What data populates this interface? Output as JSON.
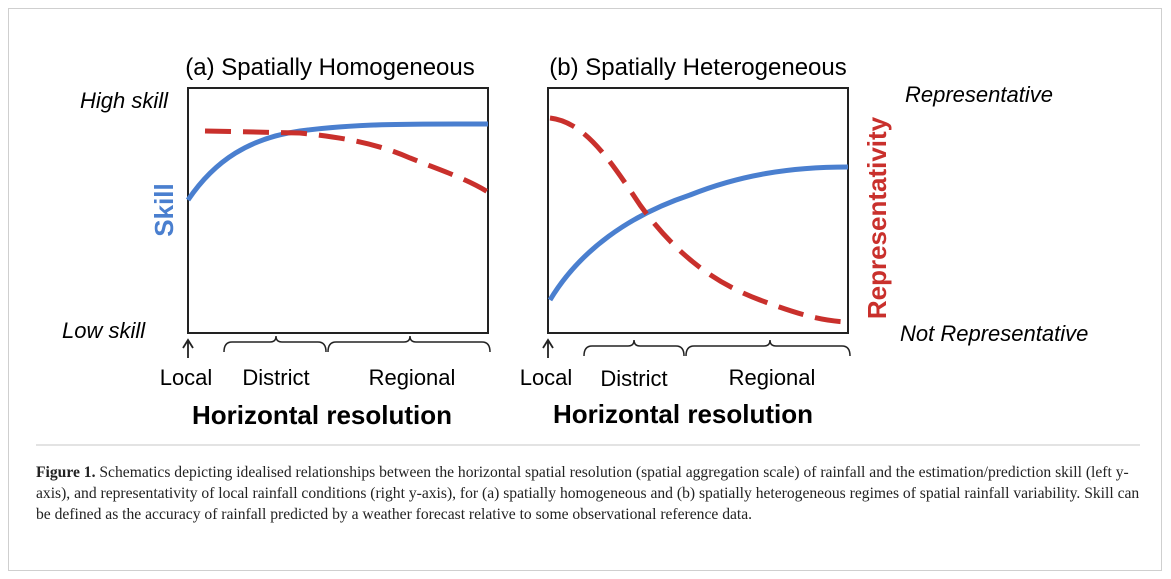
{
  "figure": {
    "panel_a": {
      "title": "(a) Spatially Homogeneous",
      "x_labels": [
        "Local",
        "District",
        "Regional"
      ],
      "x_title": "Horizontal resolution"
    },
    "panel_b": {
      "title": "(b) Spatially Heterogeneous",
      "x_labels": [
        "Local",
        "District",
        "Regional"
      ],
      "x_title": "Horizontal resolution"
    },
    "left_axis": {
      "title": "Skill",
      "top": "High skill",
      "bottom": "Low skill"
    },
    "right_axis": {
      "title": "Representativity",
      "top": "Representative",
      "bottom": "Not Representative"
    }
  },
  "caption": {
    "label": "Figure 1.",
    "text": " Schematics depicting idealised relationships between the horizontal spatial resolution (spatial aggregation scale) of rainfall and the estimation/prediction skill (left y-axis), and representativity of local rainfall conditions (right y-axis), for (a) spatially homogeneous and (b) spatially heterogeneous regimes of spatial rainfall variability. Skill can be defined as the accuracy of rainfall predicted by a weather forecast relative to some observational reference data."
  }
}
